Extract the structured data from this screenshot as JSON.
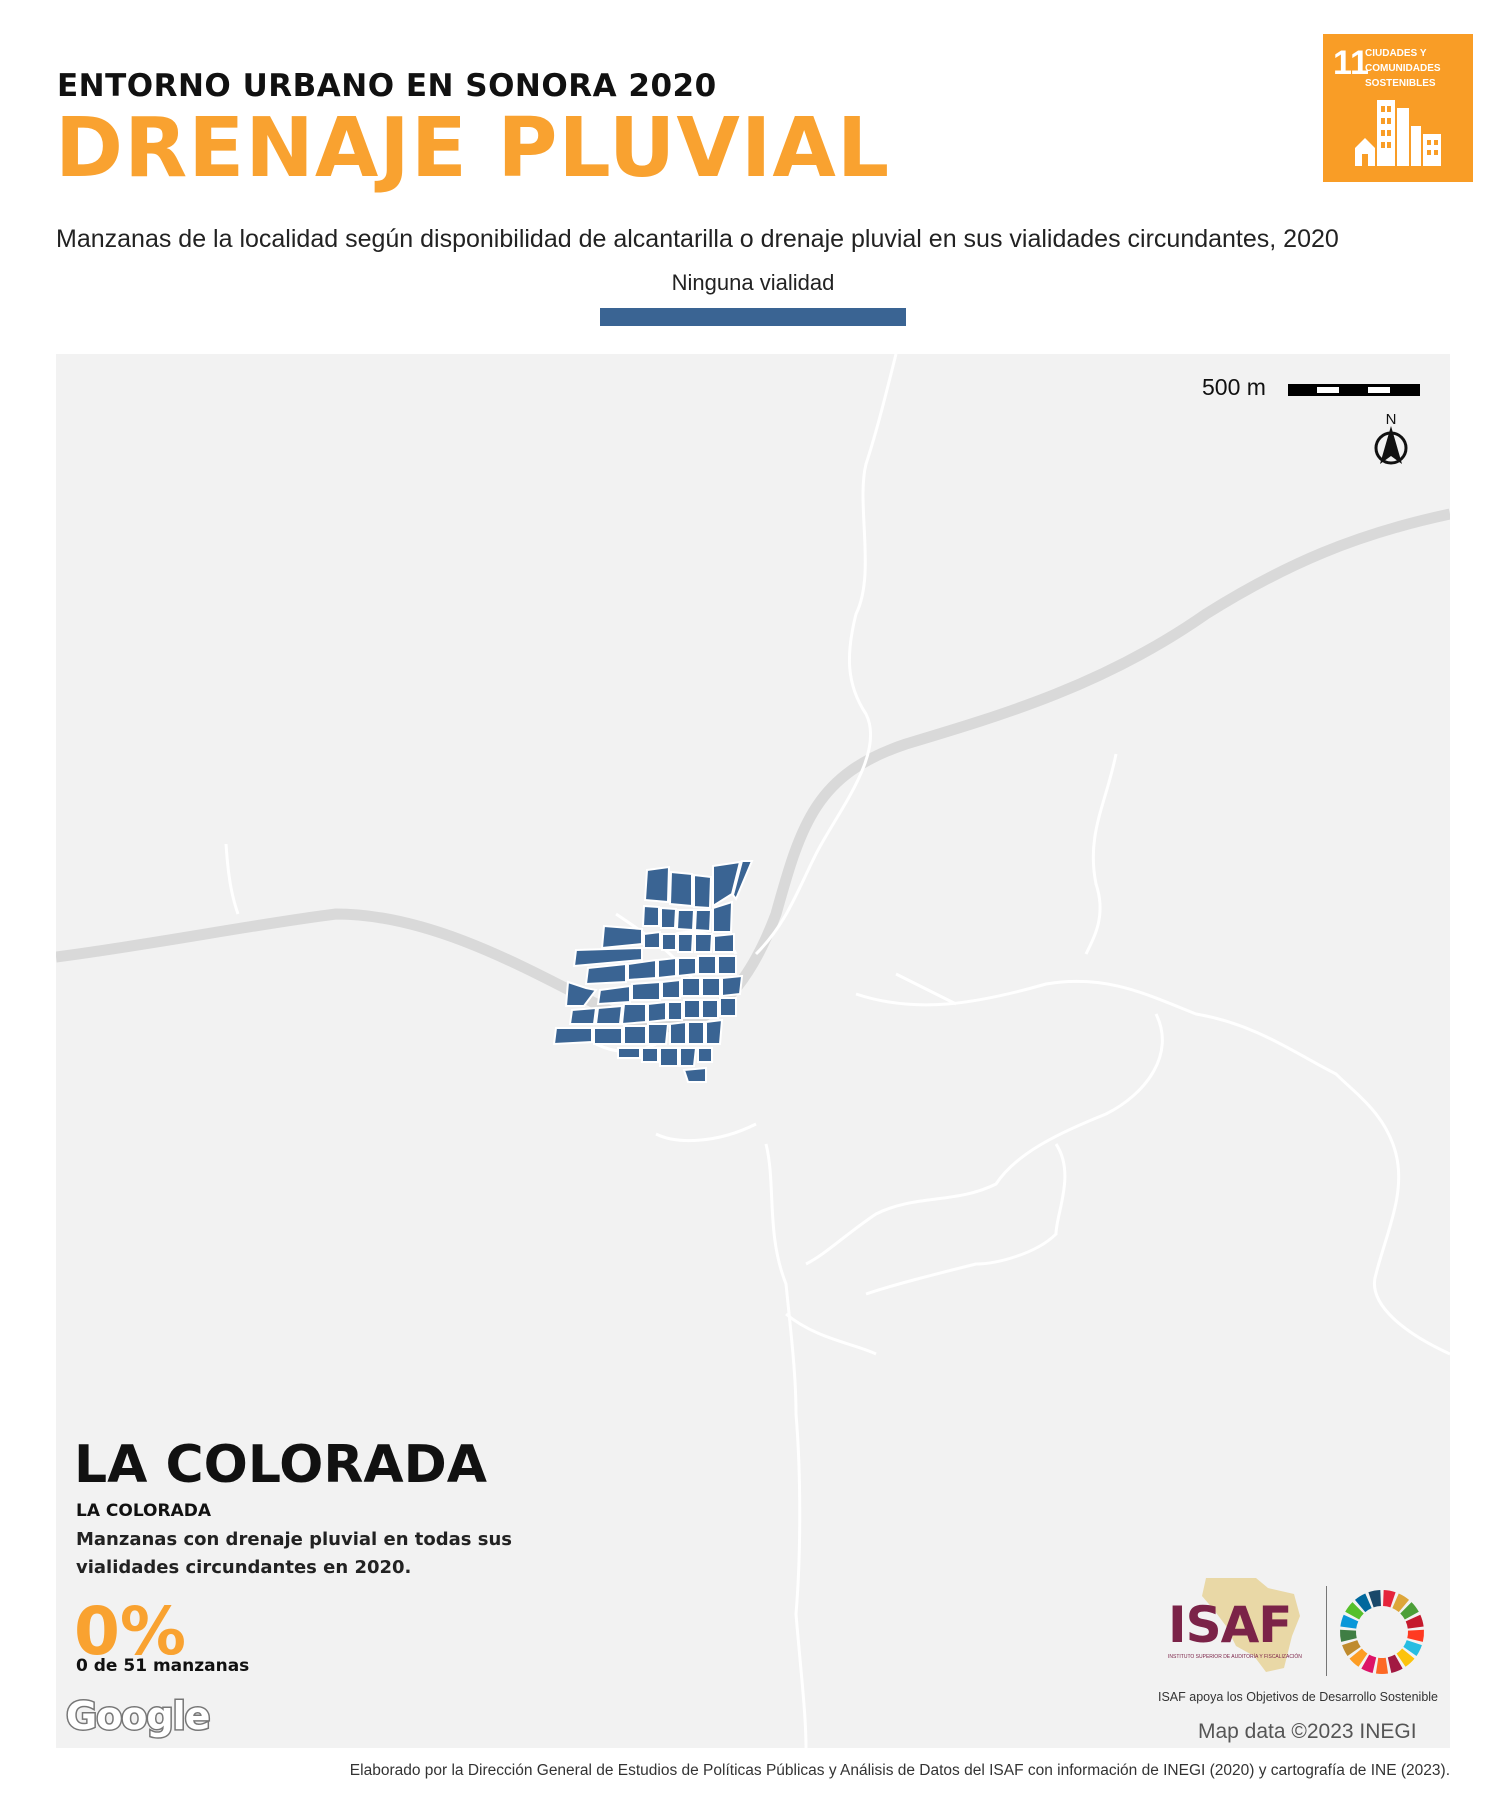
{
  "header": {
    "kicker": "ENTORNO URBANO EN SONORA 2020",
    "title": "DRENAJE PLUVIAL",
    "subtitle": "Manzanas de la localidad según disponibilidad de alcantarilla o drenaje pluvial en sus vialidades circundantes, 2020"
  },
  "sdg_badge": {
    "number": "11",
    "label": "Ciudades y\ncomunidades\nsostenibles",
    "color": "#f99d26"
  },
  "legend": {
    "label": "Ninguna vialidad",
    "color": "#3a6493"
  },
  "map": {
    "background": "#f2f2f2",
    "block_color": "#3a6493",
    "scale_label": "500 m",
    "north_label": "N",
    "attribution": "Map data ©2023 INEGI",
    "google_logo": "Google"
  },
  "locality": {
    "municipality": "LA COLORADA",
    "locality": "LA COLORADA",
    "stat_description": "Manzanas con drenaje pluvial en todas sus vialidades circundantes en 2020.",
    "stat_percent": "0%",
    "stat_count": "0 de 51 manzanas"
  },
  "isaf": {
    "logo_text": "ISAF",
    "logo_subtext": "INSTITUTO SUPERIOR DE AUDITORÍA Y FISCALIZACIÓN",
    "caption": "ISAF apoya los Objetivos de Desarrollo Sostenible"
  },
  "footer": {
    "credit": "Elaborado por la Dirección General de Estudios de Políticas Públicas y Análisis de Datos del ISAF con información de INEGI (2020) y cartografía de INE (2023)."
  }
}
